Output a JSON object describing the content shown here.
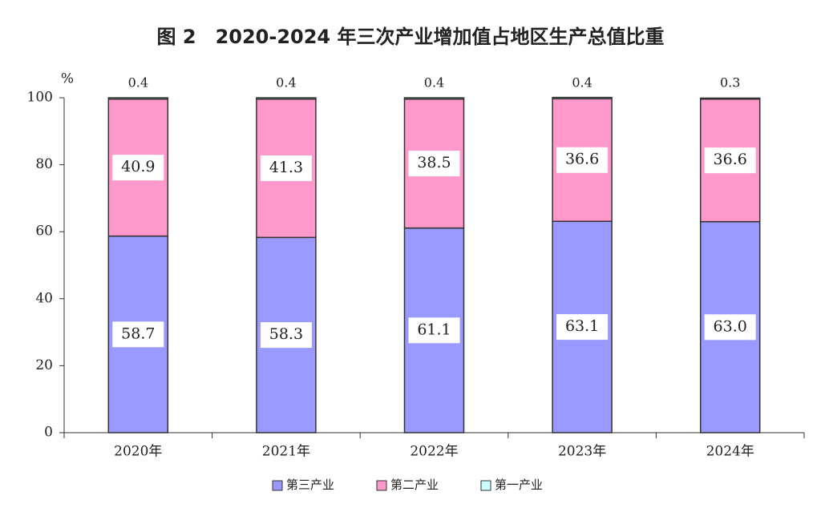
{
  "chart_data": {
    "type": "stacked-bar",
    "title": "图 2　2020-2024 年三次产业增加值占地区生产总值比重",
    "y_label": "%",
    "categories": [
      "2020年",
      "2021年",
      "2022年",
      "2023年",
      "2024年"
    ],
    "series": [
      {
        "name": "第三产业",
        "color": "#9999ff",
        "values": [
          58.7,
          58.3,
          61.1,
          63.1,
          63.0
        ],
        "value_labels": [
          "58.7",
          "58.3",
          "61.1",
          "63.1",
          "63.0"
        ]
      },
      {
        "name": "第二产业",
        "color": "#ff99cc",
        "values": [
          40.9,
          41.3,
          38.5,
          36.6,
          36.6
        ],
        "value_labels": [
          "40.9",
          "41.3",
          "38.5",
          "36.6",
          "36.6"
        ]
      },
      {
        "name": "第一产业",
        "color": "#ccffff",
        "values": [
          0.4,
          0.4,
          0.4,
          0.4,
          0.3
        ],
        "value_labels": [
          "0.4",
          "0.4",
          "0.4",
          "0.4",
          "0.3"
        ]
      }
    ],
    "ylim": [
      0,
      100
    ],
    "yticks": [
      0,
      20,
      40,
      60,
      80,
      100
    ],
    "grid": false,
    "legend": "bottom"
  }
}
